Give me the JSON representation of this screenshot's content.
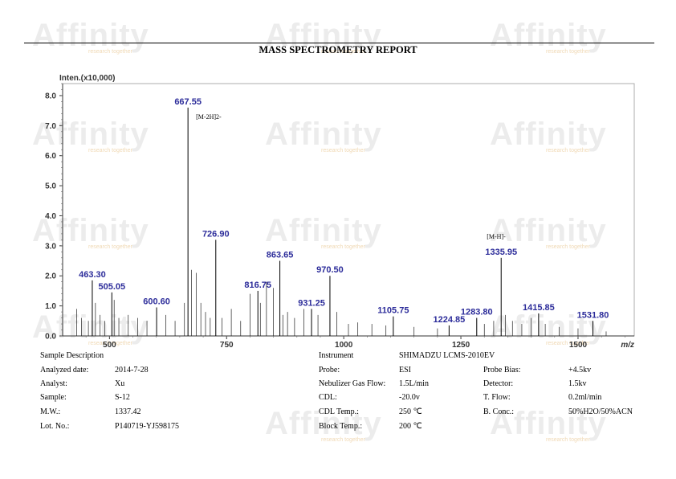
{
  "report": {
    "title": "MASS SPECTROMETRY REPORT",
    "watermark": {
      "brand": "Affinity",
      "tagline": "research together"
    }
  },
  "chart_data": {
    "type": "bar",
    "ylabel": "Inten.(x10,000)",
    "xlabel": "m/z",
    "xlim": [
      400,
      1620
    ],
    "ylim": [
      0,
      8.4
    ],
    "x_ticks": [
      500,
      750,
      1000,
      1250,
      1500
    ],
    "y_ticks": [
      0.0,
      1.0,
      2.0,
      3.0,
      4.0,
      5.0,
      6.0,
      7.0,
      8.0
    ],
    "y_tick_labels": [
      "0.0",
      "1.0",
      "2.0",
      "3.0",
      "4.0",
      "5.0",
      "6.0",
      "7.0",
      "8.0"
    ],
    "labeled_peaks": [
      {
        "mz": 463.3,
        "intensity": 1.85,
        "label": "463.30"
      },
      {
        "mz": 505.05,
        "intensity": 1.45,
        "label": "505.05"
      },
      {
        "mz": 600.6,
        "intensity": 0.95,
        "label": "600.60"
      },
      {
        "mz": 667.55,
        "intensity": 7.6,
        "label": "667.55"
      },
      {
        "mz": 726.9,
        "intensity": 3.2,
        "label": "726.90"
      },
      {
        "mz": 816.75,
        "intensity": 1.5,
        "label": "816.75"
      },
      {
        "mz": 863.65,
        "intensity": 2.5,
        "label": "863.65"
      },
      {
        "mz": 931.25,
        "intensity": 0.9,
        "label": "931.25"
      },
      {
        "mz": 970.5,
        "intensity": 2.0,
        "label": "970.50"
      },
      {
        "mz": 1105.75,
        "intensity": 0.65,
        "label": "1105.75"
      },
      {
        "mz": 1224.85,
        "intensity": 0.35,
        "label": "1224.85"
      },
      {
        "mz": 1283.8,
        "intensity": 0.6,
        "label": "1283.80"
      },
      {
        "mz": 1335.95,
        "intensity": 2.6,
        "label": "1335.95"
      },
      {
        "mz": 1415.85,
        "intensity": 0.75,
        "label": "1415.85"
      },
      {
        "mz": 1531.8,
        "intensity": 0.5,
        "label": "1531.80"
      }
    ],
    "minor_peaks": [
      {
        "mz": 430,
        "intensity": 0.9
      },
      {
        "mz": 440,
        "intensity": 0.6
      },
      {
        "mz": 455,
        "intensity": 0.5
      },
      {
        "mz": 470,
        "intensity": 1.1
      },
      {
        "mz": 480,
        "intensity": 0.7
      },
      {
        "mz": 490,
        "intensity": 0.5
      },
      {
        "mz": 510,
        "intensity": 1.2
      },
      {
        "mz": 520,
        "intensity": 0.6
      },
      {
        "mz": 540,
        "intensity": 0.7
      },
      {
        "mz": 560,
        "intensity": 0.6
      },
      {
        "mz": 580,
        "intensity": 0.5
      },
      {
        "mz": 620,
        "intensity": 0.7
      },
      {
        "mz": 640,
        "intensity": 0.5
      },
      {
        "mz": 660,
        "intensity": 1.1
      },
      {
        "mz": 675,
        "intensity": 2.2
      },
      {
        "mz": 685,
        "intensity": 2.1
      },
      {
        "mz": 695,
        "intensity": 1.1
      },
      {
        "mz": 705,
        "intensity": 0.8
      },
      {
        "mz": 715,
        "intensity": 0.6
      },
      {
        "mz": 740,
        "intensity": 0.6
      },
      {
        "mz": 760,
        "intensity": 0.9
      },
      {
        "mz": 780,
        "intensity": 0.5
      },
      {
        "mz": 800,
        "intensity": 1.4
      },
      {
        "mz": 822,
        "intensity": 1.1
      },
      {
        "mz": 835,
        "intensity": 1.8
      },
      {
        "mz": 850,
        "intensity": 1.6
      },
      {
        "mz": 870,
        "intensity": 0.7
      },
      {
        "mz": 880,
        "intensity": 0.8
      },
      {
        "mz": 895,
        "intensity": 0.6
      },
      {
        "mz": 915,
        "intensity": 0.9
      },
      {
        "mz": 945,
        "intensity": 0.7
      },
      {
        "mz": 985,
        "intensity": 0.8
      },
      {
        "mz": 1010,
        "intensity": 0.4
      },
      {
        "mz": 1030,
        "intensity": 0.45
      },
      {
        "mz": 1060,
        "intensity": 0.4
      },
      {
        "mz": 1090,
        "intensity": 0.35
      },
      {
        "mz": 1150,
        "intensity": 0.3
      },
      {
        "mz": 1200,
        "intensity": 0.25
      },
      {
        "mz": 1300,
        "intensity": 0.4
      },
      {
        "mz": 1320,
        "intensity": 0.5
      },
      {
        "mz": 1345,
        "intensity": 0.7
      },
      {
        "mz": 1360,
        "intensity": 0.5
      },
      {
        "mz": 1380,
        "intensity": 0.4
      },
      {
        "mz": 1400,
        "intensity": 0.6
      },
      {
        "mz": 1430,
        "intensity": 0.4
      },
      {
        "mz": 1460,
        "intensity": 0.3
      },
      {
        "mz": 1500,
        "intensity": 0.25
      },
      {
        "mz": 1560,
        "intensity": 0.15
      }
    ],
    "annotations": [
      {
        "text": "[M-2H]2-",
        "mz": 667.55
      },
      {
        "text": "[M-H]-",
        "mz": 1335.95
      }
    ]
  },
  "sample_info": {
    "heading": "Sample Description",
    "rows": [
      {
        "label": "Analyzed date:",
        "value": "2014-7-28"
      },
      {
        "label": "Analyst:",
        "value": "Xu"
      },
      {
        "label": "Sample:",
        "value": "S-12"
      },
      {
        "label": "M.W.:",
        "value": "1337.42"
      },
      {
        "label": "Lot. No.:",
        "value": "P140719-YJ598175"
      }
    ]
  },
  "instrument_info": {
    "label": "Instrument",
    "value": "SHIMADZU LCMS-2010EV",
    "rows": [
      {
        "label": "Probe:",
        "value": "ESI",
        "label2": "Probe Bias:",
        "value2": "+4.5kv"
      },
      {
        "label": "Nebulizer Gas Flow:",
        "value": "1.5L/min",
        "label2": "Detector:",
        "value2": "1.5kv"
      },
      {
        "label": "CDL:",
        "value": "-20.0v",
        "label2": "T. Flow:",
        "value2": "0.2ml/min"
      },
      {
        "label": "CDL Temp.:",
        "value": "250 ℃",
        "label2": "B. Conc.:",
        "value2": "50%H2O/50%ACN"
      },
      {
        "label": "Block Temp.:",
        "value": "200 ℃",
        "label2": "",
        "value2": ""
      }
    ]
  }
}
